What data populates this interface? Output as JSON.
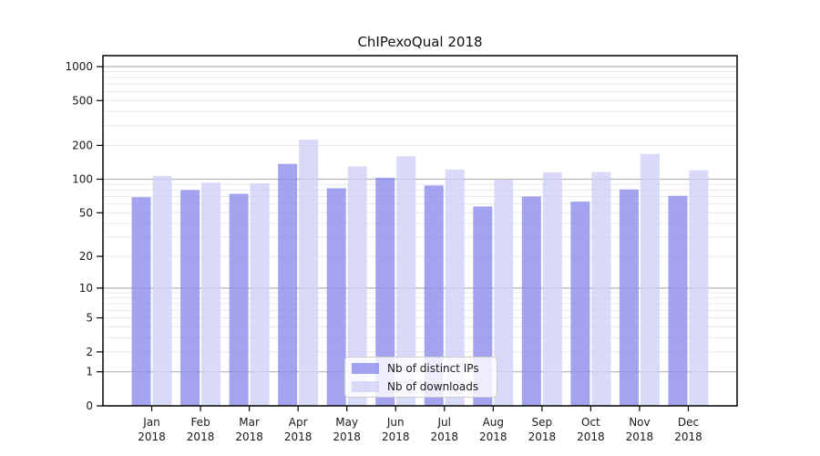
{
  "chart_data": {
    "type": "bar",
    "title": "ChIPexoQual 2018",
    "categories": [
      "Jan",
      "Feb",
      "Mar",
      "Apr",
      "May",
      "Jun",
      "Jul",
      "Aug",
      "Sep",
      "Oct",
      "Nov",
      "Dec"
    ],
    "category_year": "2018",
    "series": [
      {
        "name": "Nb of distinct IPs",
        "color": "rgba(140,140,236,0.8)",
        "values": [
          69,
          80,
          74,
          137,
          83,
          103,
          88,
          57,
          70,
          63,
          81,
          71
        ]
      },
      {
        "name": "Nb of downloads",
        "color": "rgba(208,208,247,0.8)",
        "values": [
          107,
          93,
          92,
          225,
          130,
          160,
          122,
          99,
          115,
          116,
          168,
          120
        ]
      }
    ],
    "y_ticks": [
      0,
      1,
      2,
      5,
      10,
      20,
      50,
      100,
      200,
      500,
      1000
    ],
    "y_scale": "symlog",
    "ylim": [
      0,
      1250
    ],
    "grid": {
      "major_values": [
        1,
        10,
        100,
        1000
      ],
      "major_color": "#b3b3b3",
      "minor_color": "#e9e9e9"
    },
    "legend": {
      "position": "lower center"
    },
    "axis_color": "#000000",
    "text_color": "#1a1a1a",
    "background": "#ffffff"
  }
}
